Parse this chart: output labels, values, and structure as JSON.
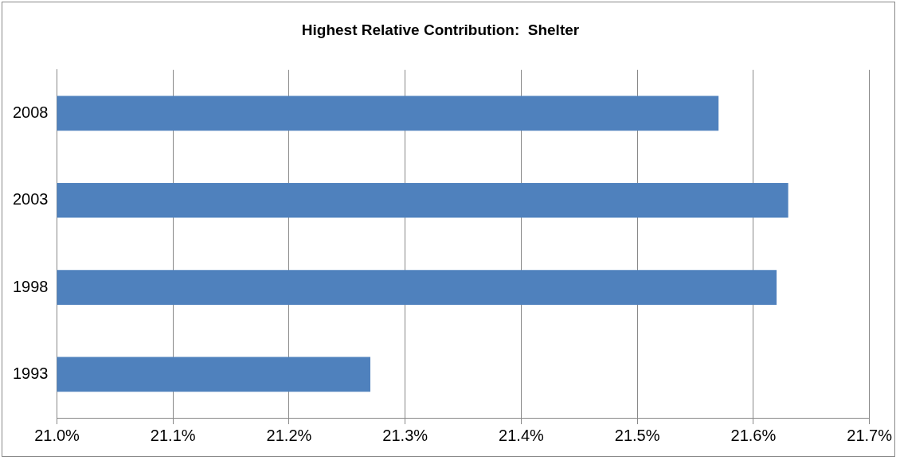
{
  "chart_data": {
    "type": "bar",
    "orientation": "horizontal",
    "title": "Highest Relative Contribution:  Shelter",
    "categories": [
      "2008",
      "2003",
      "1998",
      "1993"
    ],
    "values": [
      21.57,
      21.63,
      21.62,
      21.27
    ],
    "color": "#4f81bd",
    "xlim": [
      21.0,
      21.7
    ],
    "xticks": [
      {
        "value": 21.0,
        "label": "21.0%"
      },
      {
        "value": 21.1,
        "label": "21.1%"
      },
      {
        "value": 21.2,
        "label": "21.2%"
      },
      {
        "value": 21.3,
        "label": "21.3%"
      },
      {
        "value": 21.4,
        "label": "21.4%"
      },
      {
        "value": 21.5,
        "label": "21.5%"
      },
      {
        "value": 21.6,
        "label": "21.6%"
      },
      {
        "value": 21.7,
        "label": "21.7%"
      }
    ],
    "grid": "x",
    "legend": false
  }
}
